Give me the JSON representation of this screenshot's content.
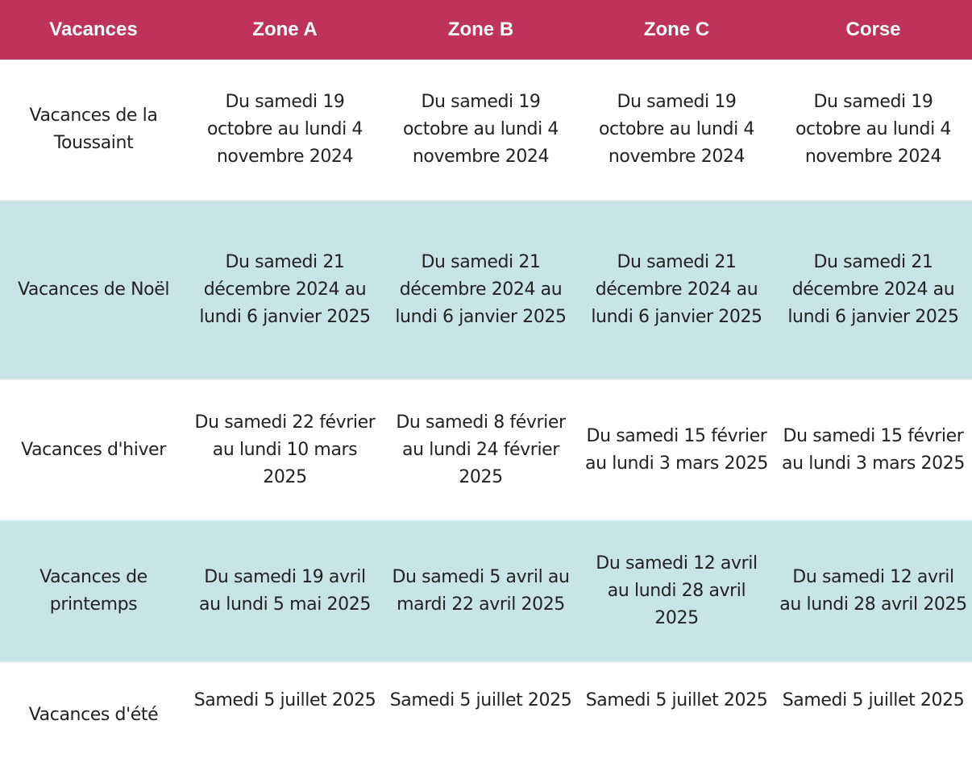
{
  "headers": [
    "Vacances",
    "Zone A",
    "Zone B",
    "Zone C",
    "Corse"
  ],
  "rows": [
    {
      "label": "Vacances de la Toussaint",
      "cells": [
        "Du samedi 19 octobre au lundi 4 novembre 2024",
        "Du samedi 19 octobre au lundi 4 novembre 2024",
        "Du samedi 19 octobre au lundi 4 novembre 2024",
        "Du samedi 19 octobre au lundi 4 novembre 2024"
      ]
    },
    {
      "label": "Vacances de Noël",
      "cells": [
        "Du samedi 21 décembre 2024 au lundi 6 janvier 2025",
        "Du samedi 21 décembre 2024 au lundi 6 janvier 2025",
        "Du samedi 21 décembre 2024 au lundi 6 janvier 2025",
        "Du samedi 21 décembre 2024 au lundi 6 janvier 2025"
      ]
    },
    {
      "label": "Vacances d'hiver",
      "cells": [
        "Du samedi 22 février au lundi 10 mars 2025",
        "Du samedi 8 février au lundi 24 février 2025",
        "Du samedi 15 février au lundi 3 mars 2025",
        "Du samedi 15 février au lundi 3 mars 2025"
      ]
    },
    {
      "label": "Vacances de printemps",
      "cells": [
        "Du samedi 19 avril au lundi 5 mai 2025",
        "Du samedi 5 avril au mardi 22 avril 2025",
        "Du samedi 12 avril au lundi 28 avril 2025",
        "Du samedi 12 avril au lundi 28 avril 2025"
      ]
    },
    {
      "label": "Vacances d'été",
      "cells": [
        "Samedi 5 juillet 2025",
        "Samedi 5 juillet 2025",
        "Samedi 5 juillet 2025",
        "Samedi 5 juillet 2025"
      ]
    }
  ]
}
